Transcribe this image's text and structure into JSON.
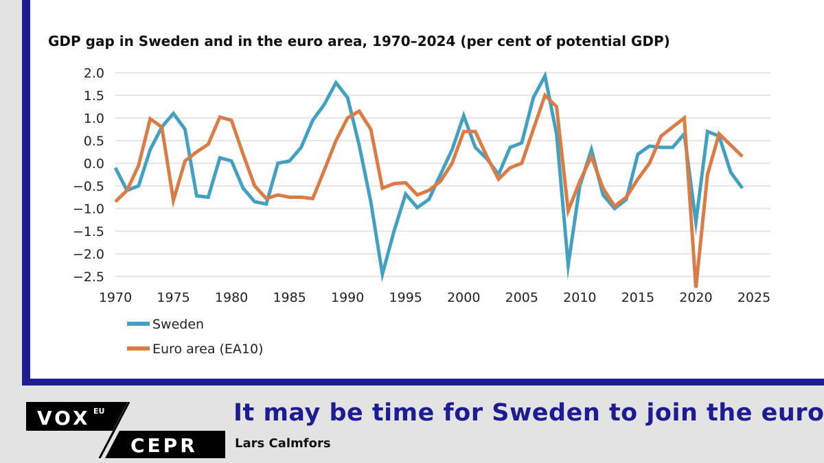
{
  "branding": {
    "logo_left": "VOX",
    "logo_superscript": "EU",
    "logo_right": "CEPR",
    "logo_color": "#000000"
  },
  "article": {
    "headline": "It may be time for Sweden to join the euro",
    "author": "Lars Calmfors",
    "accent_color": "#1d1c91"
  },
  "chart_data": {
    "type": "line",
    "title": "GDP gap in Sweden and in the euro area, 1970–2024 (per cent of potential GDP)",
    "xlabel": "",
    "ylabel": "",
    "xlim": [
      1970,
      2025
    ],
    "ylim": [
      -2.5,
      2.0
    ],
    "x_ticks": [
      "1970",
      "1975",
      "1980",
      "1985",
      "1990",
      "1995",
      "2000",
      "2005",
      "2010",
      "2015",
      "2020",
      "2025"
    ],
    "y_ticks": [
      "2.0",
      "1.5",
      "1.0",
      "0.5",
      "0.0",
      "−0.5",
      "−1.0",
      "−1.5",
      "−2.0",
      "−2.5"
    ],
    "grid": "horizontal",
    "legend_position": "bottom-left",
    "x": [
      1970,
      1971,
      1972,
      1973,
      1974,
      1975,
      1976,
      1977,
      1978,
      1979,
      1980,
      1981,
      1982,
      1983,
      1984,
      1985,
      1986,
      1987,
      1988,
      1989,
      1990,
      1991,
      1992,
      1993,
      1994,
      1995,
      1996,
      1997,
      1998,
      1999,
      2000,
      2001,
      2002,
      2003,
      2004,
      2005,
      2006,
      2007,
      2008,
      2009,
      2010,
      2011,
      2012,
      2013,
      2014,
      2015,
      2016,
      2017,
      2018,
      2019,
      2020,
      2021,
      2022,
      2023,
      2024
    ],
    "series": [
      {
        "name": "Sweden",
        "color": "#44a0c0",
        "values": [
          -0.1,
          -0.6,
          -0.5,
          0.3,
          0.8,
          1.1,
          0.75,
          -0.72,
          -0.75,
          0.12,
          0.05,
          -0.55,
          -0.85,
          -0.9,
          0.0,
          0.05,
          0.35,
          0.95,
          1.3,
          1.78,
          1.45,
          0.4,
          -0.85,
          -2.45,
          -1.5,
          -0.68,
          -0.98,
          -0.8,
          -0.25,
          0.3,
          1.05,
          0.35,
          0.1,
          -0.25,
          0.35,
          0.45,
          1.45,
          1.93,
          0.65,
          -2.25,
          -0.5,
          0.3,
          -0.7,
          -1.0,
          -0.8,
          0.2,
          0.38,
          0.35,
          0.35,
          0.65,
          -1.3,
          0.7,
          0.6,
          -0.2,
          -0.55
        ]
      },
      {
        "name": "Euro area (EA10)",
        "color": "#d97c45",
        "values": [
          -0.85,
          -0.6,
          -0.05,
          0.98,
          0.8,
          -0.82,
          0.05,
          0.25,
          0.42,
          1.02,
          0.95,
          0.2,
          -0.5,
          -0.78,
          -0.7,
          -0.75,
          -0.75,
          -0.78,
          -0.15,
          0.5,
          1.0,
          1.15,
          0.75,
          -0.55,
          -0.45,
          -0.43,
          -0.7,
          -0.6,
          -0.4,
          0.0,
          0.7,
          0.7,
          0.15,
          -0.35,
          -0.1,
          0.0,
          0.75,
          1.5,
          1.25,
          -1.05,
          -0.4,
          0.15,
          -0.55,
          -0.95,
          -0.75,
          -0.35,
          0.0,
          0.6,
          0.8,
          1.0,
          -2.75,
          -0.25,
          0.65,
          0.4,
          0.15
        ]
      }
    ]
  }
}
